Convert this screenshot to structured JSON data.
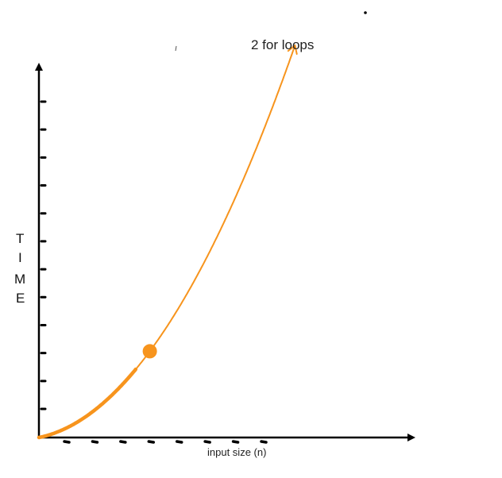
{
  "chart_data": {
    "type": "line",
    "title": "",
    "xlabel": "input size (n)",
    "ylabel": "TIME",
    "ylabel_letters": [
      "T",
      "I",
      "M",
      "E"
    ],
    "series": [
      {
        "name": "2 for loops",
        "shape": "quadratic",
        "color": "#F7941D",
        "highlighted_point": {
          "x": 5.5,
          "y": 4.2
        }
      }
    ],
    "xlim": [
      0,
      13
    ],
    "ylim": [
      0,
      13
    ],
    "x_tick_count": 8,
    "y_tick_count": 13,
    "grid": false,
    "legend": "none",
    "colors": {
      "axis": "#000000",
      "curve": "#F7941D",
      "point": "#F7941D"
    }
  }
}
